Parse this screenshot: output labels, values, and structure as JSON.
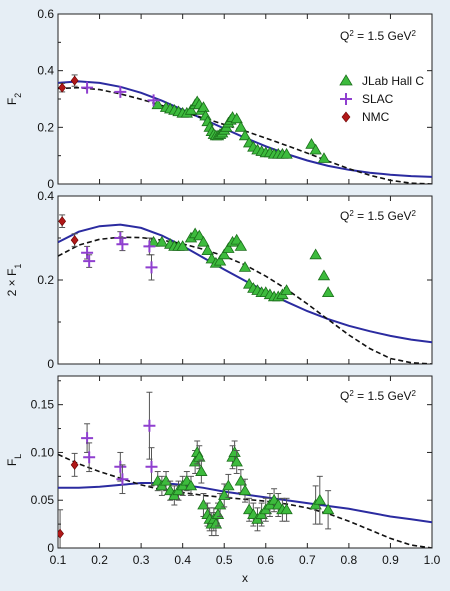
{
  "chart_data": [
    {
      "type": "scatter",
      "panel": "top",
      "ylabel": "F",
      "ylabel_sub": "2",
      "annotation": "Q",
      "annotation_sup": "2",
      "annotation_rest": " = 1.5 GeV",
      "annotation_sup2": "2",
      "xlim": [
        0.1,
        1.0
      ],
      "ylim": [
        0,
        0.6
      ],
      "yticks": [
        0,
        0.2,
        0.4,
        0.6
      ],
      "ytick_labels": [
        "0",
        "0.2",
        "0.4",
        "0.6"
      ],
      "legend": {
        "placement": "right",
        "entries": [
          {
            "name": "JLab Hall C",
            "marker": "triangle",
            "color": "#3dbb3d"
          },
          {
            "name": "SLAC",
            "marker": "plus",
            "color": "#8f3fcf"
          },
          {
            "name": "NMC",
            "marker": "diamond",
            "color": "#b01818"
          }
        ]
      },
      "series": [
        {
          "name": "JLab Hall C",
          "marker": "triangle",
          "color": "#3dbb3d",
          "x": [
            0.34,
            0.36,
            0.37,
            0.38,
            0.39,
            0.4,
            0.41,
            0.42,
            0.43,
            0.435,
            0.44,
            0.445,
            0.45,
            0.455,
            0.46,
            0.465,
            0.47,
            0.475,
            0.48,
            0.485,
            0.49,
            0.495,
            0.5,
            0.505,
            0.51,
            0.515,
            0.52,
            0.53,
            0.54,
            0.55,
            0.56,
            0.57,
            0.58,
            0.59,
            0.6,
            0.61,
            0.62,
            0.63,
            0.64,
            0.65,
            0.71,
            0.72,
            0.74
          ],
          "y": [
            0.28,
            0.27,
            0.265,
            0.26,
            0.255,
            0.25,
            0.25,
            0.26,
            0.28,
            0.29,
            0.28,
            0.26,
            0.27,
            0.24,
            0.22,
            0.2,
            0.185,
            0.175,
            0.17,
            0.17,
            0.175,
            0.18,
            0.19,
            0.2,
            0.215,
            0.225,
            0.235,
            0.23,
            0.2,
            0.17,
            0.145,
            0.13,
            0.12,
            0.115,
            0.11,
            0.11,
            0.105,
            0.105,
            0.105,
            0.105,
            0.14,
            0.12,
            0.09
          ]
        },
        {
          "name": "SLAC",
          "marker": "plus",
          "color": "#8f3fcf",
          "x": [
            0.17,
            0.25,
            0.33
          ],
          "y": [
            0.34,
            0.325,
            0.295
          ]
        },
        {
          "name": "NMC",
          "marker": "diamond",
          "color": "#b01818",
          "x": [
            0.11,
            0.14
          ],
          "y": [
            0.34,
            0.365
          ],
          "err": [
            0.015,
            0.02
          ]
        }
      ],
      "curves": [
        {
          "style": "solid",
          "color": "#2b2ba0",
          "x": [
            0.1,
            0.15,
            0.2,
            0.25,
            0.3,
            0.35,
            0.4,
            0.45,
            0.5,
            0.55,
            0.6,
            0.65,
            0.7,
            0.75,
            0.8,
            0.85,
            0.9,
            0.95,
            1.0
          ],
          "y": [
            0.357,
            0.362,
            0.357,
            0.343,
            0.322,
            0.294,
            0.262,
            0.229,
            0.196,
            0.163,
            0.133,
            0.106,
            0.083,
            0.064,
            0.05,
            0.04,
            0.033,
            0.028,
            0.025
          ]
        },
        {
          "style": "dashed",
          "color": "#111111",
          "x": [
            0.1,
            0.15,
            0.2,
            0.25,
            0.3,
            0.35,
            0.4,
            0.45,
            0.5,
            0.55,
            0.6,
            0.65,
            0.7,
            0.75,
            0.8,
            0.85,
            0.9,
            0.95,
            1.0
          ],
          "y": [
            0.337,
            0.34,
            0.333,
            0.318,
            0.299,
            0.277,
            0.255,
            0.233,
            0.21,
            0.187,
            0.162,
            0.136,
            0.109,
            0.081,
            0.054,
            0.031,
            0.013,
            0.003,
            0.0
          ]
        }
      ]
    },
    {
      "type": "scatter",
      "panel": "middle",
      "ylabel": "2 × F",
      "ylabel_sub": "1",
      "annotation": "Q",
      "annotation_sup": "2",
      "annotation_rest": " = 1.5 GeV",
      "annotation_sup2": "2",
      "xlim": [
        0.1,
        1.0
      ],
      "ylim": [
        0,
        0.4
      ],
      "yticks": [
        0,
        0.2,
        0.4
      ],
      "ytick_labels": [
        "0",
        "0.2",
        "0.4"
      ],
      "series": [
        {
          "name": "JLab Hall C",
          "marker": "triangle",
          "color": "#3dbb3d",
          "x": [
            0.33,
            0.35,
            0.37,
            0.38,
            0.39,
            0.4,
            0.42,
            0.43,
            0.44,
            0.45,
            0.46,
            0.47,
            0.48,
            0.49,
            0.5,
            0.51,
            0.52,
            0.53,
            0.54,
            0.55,
            0.56,
            0.57,
            0.58,
            0.59,
            0.6,
            0.61,
            0.62,
            0.63,
            0.64,
            0.65,
            0.72,
            0.74,
            0.75
          ],
          "y": [
            0.29,
            0.29,
            0.285,
            0.28,
            0.28,
            0.28,
            0.3,
            0.31,
            0.305,
            0.29,
            0.27,
            0.25,
            0.24,
            0.245,
            0.26,
            0.275,
            0.29,
            0.295,
            0.28,
            0.23,
            0.19,
            0.18,
            0.175,
            0.17,
            0.17,
            0.165,
            0.16,
            0.16,
            0.165,
            0.175,
            0.26,
            0.21,
            0.17
          ]
        },
        {
          "name": "SLAC",
          "marker": "plus",
          "color": "#8f3fcf",
          "x": [
            0.17,
            0.175,
            0.25,
            0.255,
            0.32,
            0.325
          ],
          "y": [
            0.265,
            0.245,
            0.3,
            0.285,
            0.28,
            0.23
          ],
          "err": [
            0.015,
            0.015,
            0.015,
            0.015,
            0.02,
            0.03
          ]
        },
        {
          "name": "NMC",
          "marker": "diamond",
          "color": "#b01818",
          "x": [
            0.11,
            0.14
          ],
          "y": [
            0.34,
            0.295
          ],
          "err": [
            0.015,
            0.015
          ]
        }
      ],
      "curves": [
        {
          "style": "solid",
          "color": "#2b2ba0",
          "x": [
            0.1,
            0.15,
            0.2,
            0.25,
            0.3,
            0.35,
            0.4,
            0.45,
            0.5,
            0.55,
            0.6,
            0.65,
            0.7,
            0.75,
            0.8,
            0.85,
            0.9,
            0.95,
            1.0
          ],
          "y": [
            0.29,
            0.315,
            0.328,
            0.332,
            0.324,
            0.306,
            0.281,
            0.253,
            0.225,
            0.198,
            0.172,
            0.148,
            0.126,
            0.107,
            0.091,
            0.078,
            0.067,
            0.058,
            0.052
          ]
        },
        {
          "style": "dashed",
          "color": "#111111",
          "x": [
            0.1,
            0.15,
            0.2,
            0.25,
            0.3,
            0.35,
            0.4,
            0.45,
            0.5,
            0.55,
            0.6,
            0.65,
            0.7,
            0.75,
            0.8,
            0.85,
            0.9,
            0.95,
            1.0
          ],
          "y": [
            0.257,
            0.283,
            0.297,
            0.302,
            0.301,
            0.295,
            0.286,
            0.273,
            0.257,
            0.236,
            0.209,
            0.178,
            0.143,
            0.106,
            0.069,
            0.037,
            0.013,
            0.003,
            0.0
          ]
        }
      ]
    },
    {
      "type": "scatter",
      "panel": "bottom",
      "ylabel": "F",
      "ylabel_sub": "L",
      "xlabel": "x",
      "annotation": "Q",
      "annotation_sup": "2",
      "annotation_rest": " = 1.5 GeV",
      "annotation_sup2": "2",
      "xlim": [
        0.1,
        1.0
      ],
      "ylim": [
        0,
        0.18
      ],
      "yticks": [
        0,
        0.05,
        0.1,
        0.15
      ],
      "ytick_labels": [
        "0",
        "0.05",
        "0.10",
        "0.15"
      ],
      "xticks": [
        0.1,
        0.2,
        0.3,
        0.4,
        0.5,
        0.6,
        0.7,
        0.8,
        0.9,
        1.0
      ],
      "xtick_labels": [
        "0.1",
        "0.2",
        "0.3",
        "0.4",
        "0.5",
        "0.6",
        "0.7",
        "0.8",
        "0.9",
        "1.0"
      ],
      "series": [
        {
          "name": "JLab Hall C",
          "marker": "triangle",
          "color": "#3dbb3d",
          "x": [
            0.34,
            0.35,
            0.36,
            0.37,
            0.38,
            0.39,
            0.4,
            0.41,
            0.42,
            0.43,
            0.435,
            0.44,
            0.445,
            0.45,
            0.46,
            0.465,
            0.47,
            0.475,
            0.48,
            0.485,
            0.49,
            0.5,
            0.51,
            0.52,
            0.525,
            0.53,
            0.54,
            0.55,
            0.56,
            0.57,
            0.58,
            0.59,
            0.6,
            0.61,
            0.62,
            0.63,
            0.64,
            0.65,
            0.72,
            0.73,
            0.75
          ],
          "y": [
            0.07,
            0.065,
            0.07,
            0.06,
            0.055,
            0.06,
            0.065,
            0.07,
            0.065,
            0.09,
            0.1,
            0.095,
            0.08,
            0.045,
            0.035,
            0.03,
            0.025,
            0.03,
            0.025,
            0.035,
            0.045,
            0.055,
            0.065,
            0.095,
            0.1,
            0.09,
            0.07,
            0.06,
            0.04,
            0.035,
            0.03,
            0.035,
            0.04,
            0.045,
            0.05,
            0.045,
            0.04,
            0.04,
            0.045,
            0.05,
            0.04
          ],
          "err": [
            0.01,
            0.01,
            0.01,
            0.01,
            0.01,
            0.01,
            0.01,
            0.01,
            0.01,
            0.012,
            0.012,
            0.012,
            0.012,
            0.012,
            0.012,
            0.012,
            0.012,
            0.012,
            0.012,
            0.012,
            0.012,
            0.012,
            0.012,
            0.012,
            0.012,
            0.012,
            0.012,
            0.012,
            0.012,
            0.012,
            0.012,
            0.012,
            0.012,
            0.012,
            0.012,
            0.012,
            0.012,
            0.012,
            0.02,
            0.025,
            0.02
          ]
        },
        {
          "name": "SLAC",
          "marker": "plus",
          "color": "#8f3fcf",
          "x": [
            0.17,
            0.175,
            0.25,
            0.255,
            0.32,
            0.325
          ],
          "y": [
            0.115,
            0.095,
            0.085,
            0.072,
            0.128,
            0.085
          ],
          "err": [
            0.015,
            0.015,
            0.015,
            0.015,
            0.035,
            0.02
          ]
        },
        {
          "name": "NMC",
          "marker": "diamond",
          "color": "#b01818",
          "x": [
            0.105,
            0.14
          ],
          "y": [
            0.015,
            0.087
          ],
          "err": [
            0.025,
            0.012
          ]
        }
      ],
      "curves": [
        {
          "style": "solid",
          "color": "#2b2ba0",
          "x": [
            0.1,
            0.15,
            0.2,
            0.25,
            0.3,
            0.35,
            0.4,
            0.45,
            0.5,
            0.55,
            0.6,
            0.65,
            0.7,
            0.75,
            0.8,
            0.85,
            0.9,
            0.95,
            1.0
          ],
          "y": [
            0.063,
            0.063,
            0.064,
            0.066,
            0.068,
            0.068,
            0.066,
            0.063,
            0.059,
            0.056,
            0.053,
            0.05,
            0.047,
            0.044,
            0.041,
            0.037,
            0.033,
            0.03,
            0.027
          ]
        },
        {
          "style": "dashed",
          "color": "#111111",
          "x": [
            0.1,
            0.15,
            0.2,
            0.25,
            0.3,
            0.35,
            0.4,
            0.45,
            0.5,
            0.55,
            0.6,
            0.65,
            0.7,
            0.75,
            0.8,
            0.85,
            0.9,
            0.95,
            1.0
          ],
          "y": [
            0.098,
            0.088,
            0.08,
            0.073,
            0.066,
            0.061,
            0.058,
            0.055,
            0.053,
            0.051,
            0.049,
            0.046,
            0.042,
            0.036,
            0.028,
            0.019,
            0.01,
            0.003,
            0.0
          ]
        }
      ]
    }
  ]
}
